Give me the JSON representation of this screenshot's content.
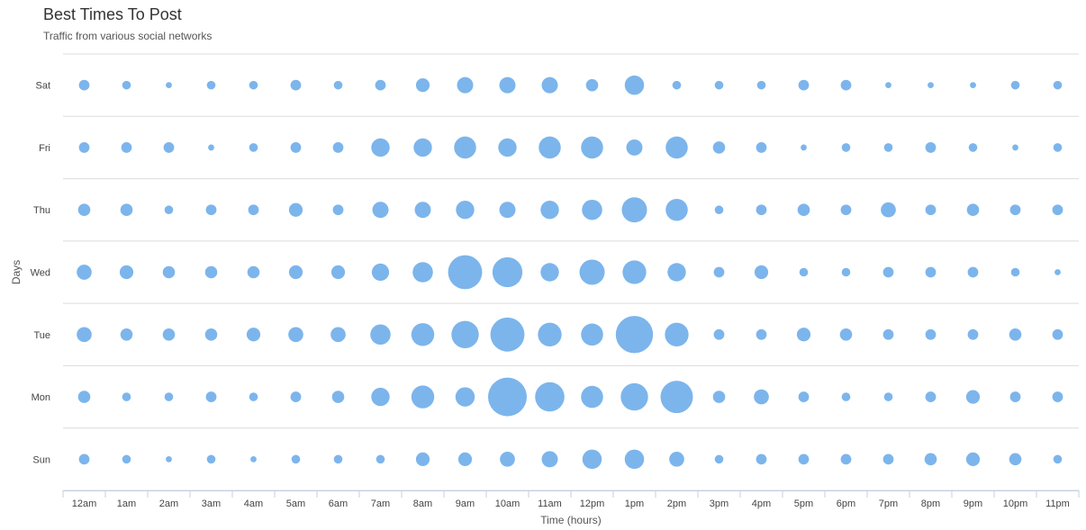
{
  "chart_data": {
    "type": "bubble",
    "title": "Best Times To Post",
    "subtitle": "Traffic from various social networks",
    "xlabel": "Time (hours)",
    "ylabel": "Days",
    "x_categories": [
      "12am",
      "1am",
      "2am",
      "3am",
      "4am",
      "5am",
      "6am",
      "7am",
      "8am",
      "9am",
      "10am",
      "11am",
      "12pm",
      "1pm",
      "2pm",
      "3pm",
      "4pm",
      "5pm",
      "6pm",
      "7pm",
      "8pm",
      "9pm",
      "10pm",
      "11pm"
    ],
    "y_categories": [
      "Sat",
      "Fri",
      "Thu",
      "Wed",
      "Tue",
      "Mon",
      "Sun"
    ],
    "bubble_color": "#7cb5ec",
    "values": [
      [
        3,
        2,
        1,
        2,
        2,
        3,
        2,
        3,
        5,
        7,
        7,
        7,
        4,
        10,
        2,
        2,
        2,
        3,
        3,
        1,
        1,
        1,
        2,
        2
      ],
      [
        3,
        3,
        3,
        1,
        2,
        3,
        3,
        9,
        9,
        13,
        9,
        13,
        13,
        7,
        13,
        4,
        3,
        1,
        2,
        2,
        3,
        2,
        1,
        2
      ],
      [
        4,
        4,
        2,
        3,
        3,
        5,
        3,
        7,
        7,
        9,
        7,
        9,
        11,
        17,
        13,
        2,
        3,
        4,
        3,
        6,
        3,
        4,
        3,
        3
      ],
      [
        6,
        5,
        4,
        4,
        4,
        5,
        5,
        8,
        11,
        31,
        24,
        9,
        17,
        15,
        9,
        3,
        5,
        2,
        2,
        3,
        3,
        3,
        2,
        1
      ],
      [
        6,
        4,
        4,
        4,
        5,
        6,
        6,
        11,
        14,
        20,
        31,
        15,
        13,
        37,
        15,
        3,
        3,
        5,
        4,
        3,
        3,
        3,
        4,
        3
      ],
      [
        4,
        2,
        2,
        3,
        2,
        3,
        4,
        9,
        14,
        10,
        40,
        23,
        13,
        20,
        28,
        4,
        6,
        3,
        2,
        2,
        3,
        5,
        3,
        3
      ],
      [
        3,
        2,
        1,
        2,
        1,
        2,
        2,
        2,
        5,
        5,
        6,
        7,
        10,
        10,
        6,
        2,
        3,
        3,
        3,
        3,
        4,
        5,
        4,
        2
      ]
    ]
  }
}
